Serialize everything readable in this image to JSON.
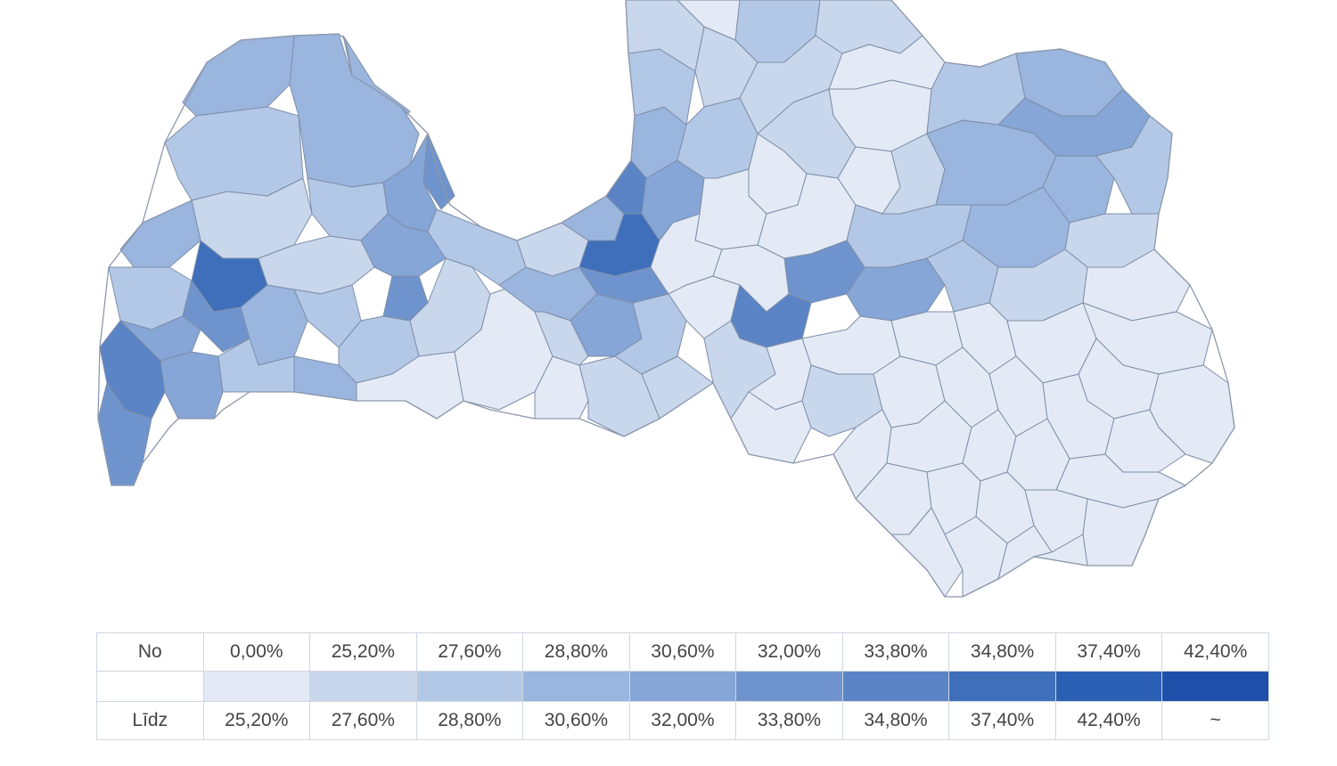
{
  "map": {
    "region_levels": [
      4,
      6,
      4,
      3,
      4,
      5,
      3,
      2,
      4,
      3,
      5,
      7,
      6,
      5,
      8,
      6,
      4,
      3,
      2,
      3,
      5,
      6,
      3,
      4,
      2,
      1,
      1,
      1,
      2,
      2,
      3,
      2,
      4,
      2,
      5,
      3,
      4,
      7,
      8,
      6,
      5,
      4,
      3,
      2,
      1,
      2,
      3,
      3,
      2,
      2,
      1,
      1,
      2,
      1,
      1,
      1,
      1,
      1,
      1,
      1,
      2,
      3,
      4,
      5,
      4,
      4,
      3,
      2,
      3,
      4,
      6,
      7,
      5,
      3,
      2,
      1,
      2,
      1,
      1,
      1,
      1,
      1,
      1,
      1,
      1,
      1,
      2,
      1,
      1,
      1,
      1,
      1,
      1,
      1,
      1,
      1,
      1,
      1,
      1,
      1,
      1,
      1,
      1,
      1,
      1,
      1
    ]
  },
  "legend": {
    "from_label": "No",
    "to_label": "Līdz",
    "from_values": [
      "0,00%",
      "25,20%",
      "27,60%",
      "28,80%",
      "30,60%",
      "32,00%",
      "33,80%",
      "34,80%",
      "37,40%",
      "42,40%"
    ],
    "to_values": [
      "25,20%",
      "27,60%",
      "28,80%",
      "30,60%",
      "32,00%",
      "33,80%",
      "34,80%",
      "37,40%",
      "42,40%",
      "~"
    ],
    "colors": [
      "#e3eaf5",
      "#c9d7ec",
      "#b3c8e6",
      "#9ab5de",
      "#85a6d6",
      "#6f94cd",
      "#5a84c5",
      "#3f6fbb",
      "#2b5fb4",
      "#1f4fa8"
    ]
  }
}
